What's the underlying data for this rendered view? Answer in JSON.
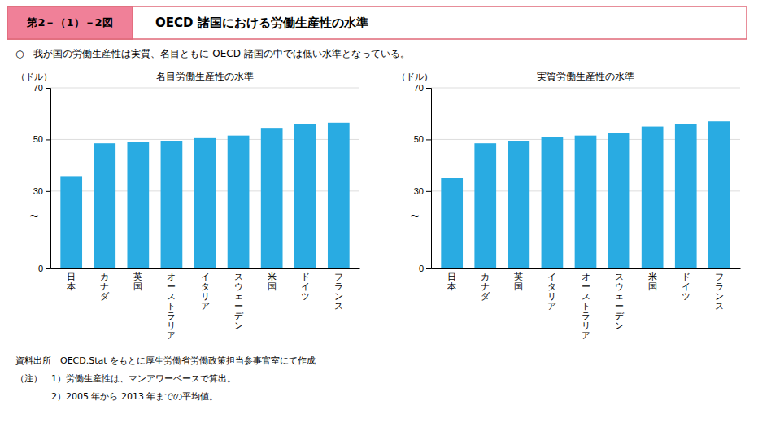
{
  "title": "OECD 諸国における労働生産性の水準",
  "subtitle": "○　我が国の労働生産性は実質、名目ともに OECD 諸国の中では低い水準となっている。",
  "annotations": [
    "第2－（1）－2図",
    "資料出所　OECD.Stat をもとに厚生労働省労働政策担当参事官室にて作成",
    "（注）　1）労働生産性は、マンアワーベースで算出。",
    "　　　　2）2005 年から 2013 年までの平均値。"
  ],
  "chart_data": [
    {
      "type": "bar",
      "title": "名目労働生産性の水準",
      "ylabel": "（ドル）",
      "categories": [
        "日\n本",
        "カ\nナ\nダ",
        "英\n国",
        "オ\nー\nス\nト\nラ\nリ\nア",
        "イ\nタ\nリ\nア",
        "ス\nウ\nェ\nー\nデ\nン",
        "米\n国",
        "ド\nイ\nツ",
        "フ\nラ\nン\nス"
      ],
      "values": [
        35.5,
        48.5,
        49.0,
        49.5,
        50.5,
        51.5,
        54.5,
        56.0,
        56.5
      ],
      "color": "#29abe2",
      "ylim": [
        0,
        70
      ],
      "yticks": [
        0,
        30,
        50,
        70
      ],
      "grid": true,
      "annotations": [
        "〜"
      ]
    },
    {
      "type": "bar",
      "title": "実質労働生産性の水準",
      "ylabel": "（ドル）",
      "categories": [
        "日\n本",
        "カ\nナ\nダ",
        "英\n国",
        "イ\nタ\nリ\nア",
        "オ\nー\nス\nト\nラ\nリ\nア",
        "ス\nウ\nェ\nー\nデ\nン",
        "米\n国",
        "ド\nイ\nツ",
        "フ\nラ\nン\nス"
      ],
      "values": [
        35.0,
        48.5,
        49.5,
        51.0,
        51.5,
        52.5,
        55.0,
        56.0,
        57.0
      ],
      "color": "#29abe2",
      "ylim": [
        0,
        70
      ],
      "yticks": [
        0,
        30,
        50,
        70
      ],
      "grid": true,
      "annotations": [
        "〜"
      ]
    }
  ]
}
